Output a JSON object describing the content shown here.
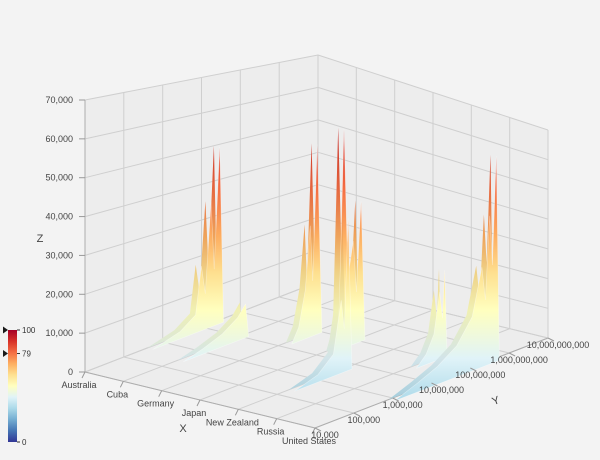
{
  "chart_data": {
    "type": "3d-surface",
    "title": "",
    "axes": {
      "x": {
        "label": "X",
        "ticks": [
          "Australia",
          "Cuba",
          "Germany",
          "Japan",
          "New Zealand",
          "Russia",
          "United States"
        ]
      },
      "y": {
        "label": "Y",
        "scale": "log",
        "ticks": [
          "10,000",
          "100,000",
          "1,000,000",
          "10,000,000",
          "100,000,000",
          "1,000,000,000",
          "10,000,000,000"
        ]
      },
      "z": {
        "label": "Z",
        "range": [
          0,
          70000
        ],
        "ticks": [
          "0",
          "10,000",
          "20,000",
          "30,000",
          "40,000",
          "50,000",
          "60,000",
          "70,000"
        ]
      }
    },
    "colorbar": {
      "min": 0,
      "max": 100,
      "current": 79,
      "ticks": [
        {
          "value": 100,
          "label": "100"
        },
        {
          "value": 79,
          "label": "79"
        },
        {
          "value": 0,
          "label": "0"
        }
      ],
      "colorscale_top_to_bottom": [
        "#a50026",
        "#d73027",
        "#f46d43",
        "#fdae61",
        "#fee090",
        "#ffffbf",
        "#e0f3f8",
        "#abd9e9",
        "#74add1",
        "#4575b4",
        "#313695"
      ]
    },
    "colors": {
      "background": "#f3f3f3",
      "wall": "#ededed",
      "grid": "#cfcfcf",
      "axis_line": "#adadad",
      "tick_text": "#444444",
      "surface_gradient": [
        [
          0,
          "#74add1"
        ],
        [
          0.1,
          "#abd9e9"
        ],
        [
          0.22,
          "#e0f3f8"
        ],
        [
          0.35,
          "#ffffbf"
        ],
        [
          0.45,
          "#fee090"
        ],
        [
          0.55,
          "#fdae61"
        ],
        [
          0.68,
          "#f46d43"
        ],
        [
          0.82,
          "#d73027"
        ],
        [
          1,
          "#a50026"
        ]
      ]
    },
    "y_encoding": "series points are [log10(y_value), z_value]; heights estimated from gridlines",
    "series": [
      {
        "name": "Australia",
        "x_index": 0,
        "points": [
          [
            5.6,
            0
          ],
          [
            6.3,
            2000
          ],
          [
            6.7,
            5000
          ],
          [
            6.85,
            18000
          ],
          [
            6.95,
            10000
          ],
          [
            7.1,
            35000
          ],
          [
            7.18,
            16000
          ],
          [
            7.32,
            50000
          ],
          [
            7.42,
            0
          ]
        ]
      },
      {
        "name": "Cuba",
        "x_index": 1,
        "points": [
          [
            5.4,
            0
          ],
          [
            5.9,
            1500
          ],
          [
            6.4,
            3500
          ],
          [
            6.8,
            6500
          ],
          [
            7.0,
            9500
          ],
          [
            7.08,
            0
          ]
        ]
      },
      {
        "name": "Germany",
        "x_index": 2,
        "points": [
          [
            7.2,
            0
          ],
          [
            7.38,
            4000
          ],
          [
            7.55,
            14000
          ],
          [
            7.68,
            32000
          ],
          [
            7.74,
            16000
          ],
          [
            7.86,
            55000
          ],
          [
            7.98,
            0
          ]
        ]
      },
      {
        "name": "Japan",
        "x_index": 3,
        "points": [
          [
            7.25,
            0
          ],
          [
            7.42,
            6000
          ],
          [
            7.56,
            63000
          ],
          [
            7.66,
            20000
          ],
          [
            7.8,
            30000
          ],
          [
            7.88,
            15000
          ],
          [
            8.0,
            41000
          ],
          [
            8.1,
            0
          ]
        ]
      },
      {
        "name": "New Zealand",
        "x_index": 4,
        "points": [
          [
            5.3,
            0
          ],
          [
            5.9,
            2000
          ],
          [
            6.3,
            6000
          ],
          [
            6.5,
            20000
          ],
          [
            6.58,
            12000
          ],
          [
            6.68,
            42000
          ],
          [
            6.78,
            0
          ]
        ]
      },
      {
        "name": "Russia",
        "x_index": 5,
        "points": [
          [
            7.45,
            0
          ],
          [
            7.7,
            3000
          ],
          [
            7.9,
            8000
          ],
          [
            8.05,
            20000
          ],
          [
            8.12,
            12000
          ],
          [
            8.18,
            26000
          ],
          [
            8.24,
            0
          ]
        ]
      },
      {
        "name": "United States",
        "x_index": 6,
        "points": [
          [
            5.9,
            0
          ],
          [
            6.5,
            2500
          ],
          [
            7.0,
            5000
          ],
          [
            7.5,
            9000
          ],
          [
            7.9,
            16000
          ],
          [
            8.15,
            30000
          ],
          [
            8.24,
            20000
          ],
          [
            8.35,
            45000
          ],
          [
            8.42,
            30000
          ],
          [
            8.52,
            63000
          ],
          [
            8.6,
            0
          ]
        ]
      }
    ]
  }
}
